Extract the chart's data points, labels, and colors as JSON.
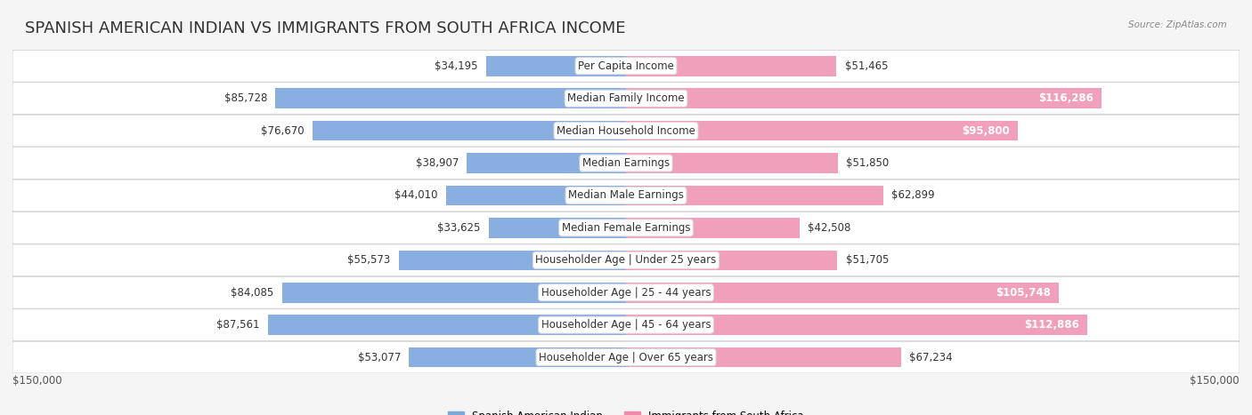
{
  "title": "SPANISH AMERICAN INDIAN VS IMMIGRANTS FROM SOUTH AFRICA INCOME",
  "source": "Source: ZipAtlas.com",
  "categories": [
    "Per Capita Income",
    "Median Family Income",
    "Median Household Income",
    "Median Earnings",
    "Median Male Earnings",
    "Median Female Earnings",
    "Householder Age | Under 25 years",
    "Householder Age | 25 - 44 years",
    "Householder Age | 45 - 64 years",
    "Householder Age | Over 65 years"
  ],
  "left_values": [
    34195,
    85728,
    76670,
    38907,
    44010,
    33625,
    55573,
    84085,
    87561,
    53077
  ],
  "right_values": [
    51465,
    116286,
    95800,
    51850,
    62899,
    42508,
    51705,
    105748,
    112886,
    67234
  ],
  "left_labels": [
    "$34,195",
    "$85,728",
    "$76,670",
    "$38,907",
    "$44,010",
    "$33,625",
    "$55,573",
    "$84,085",
    "$87,561",
    "$53,077"
  ],
  "right_labels": [
    "$51,465",
    "$116,286",
    "$95,800",
    "$51,850",
    "$62,899",
    "$42,508",
    "$51,705",
    "$105,748",
    "$112,886",
    "$67,234"
  ],
  "left_color": "#89aee0",
  "right_color": "#f0a0bb",
  "left_color_legend": "#7baad8",
  "right_color_legend": "#f08aaa",
  "max_val": 150000,
  "left_axis_label": "$150,000",
  "right_axis_label": "$150,000",
  "legend_left": "Spanish American Indian",
  "legend_right": "Immigrants from South Africa",
  "background_color": "#f5f5f5",
  "row_bg_color": "#ffffff",
  "title_fontsize": 13,
  "label_fontsize": 8.5,
  "category_fontsize": 8.5
}
